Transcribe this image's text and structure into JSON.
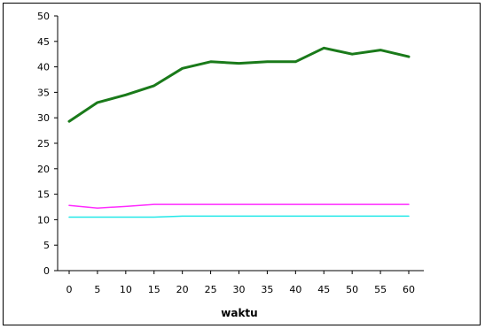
{
  "chart_data": {
    "type": "line",
    "title": "",
    "xlabel": "waktu",
    "ylabel": "",
    "ylim": [
      0,
      50
    ],
    "xlim": [
      0,
      60
    ],
    "y_ticks": [
      0,
      5,
      10,
      15,
      20,
      25,
      30,
      35,
      40,
      45,
      50
    ],
    "x_ticks": [
      0,
      5,
      10,
      15,
      20,
      25,
      30,
      35,
      40,
      45,
      50,
      55,
      60
    ],
    "grid": false,
    "legend": "none",
    "x": [
      0,
      5,
      10,
      15,
      20,
      25,
      30,
      35,
      40,
      45,
      50,
      55,
      60
    ],
    "series": [
      {
        "color": "#1a7a1a",
        "values": [
          29.3,
          33,
          34.5,
          36.3,
          39.7,
          41,
          40.7,
          41,
          41,
          43.7,
          42.5,
          43.3,
          42
        ]
      },
      {
        "color": "#ff2bff",
        "values": [
          12.8,
          12.3,
          12.6,
          13,
          13,
          13,
          13,
          13,
          13,
          13,
          13,
          13,
          13
        ]
      },
      {
        "color": "#22e8e8",
        "values": [
          10.5,
          10.5,
          10.5,
          10.5,
          10.7,
          10.7,
          10.7,
          10.7,
          10.7,
          10.7,
          10.7,
          10.7,
          10.7
        ]
      }
    ]
  }
}
